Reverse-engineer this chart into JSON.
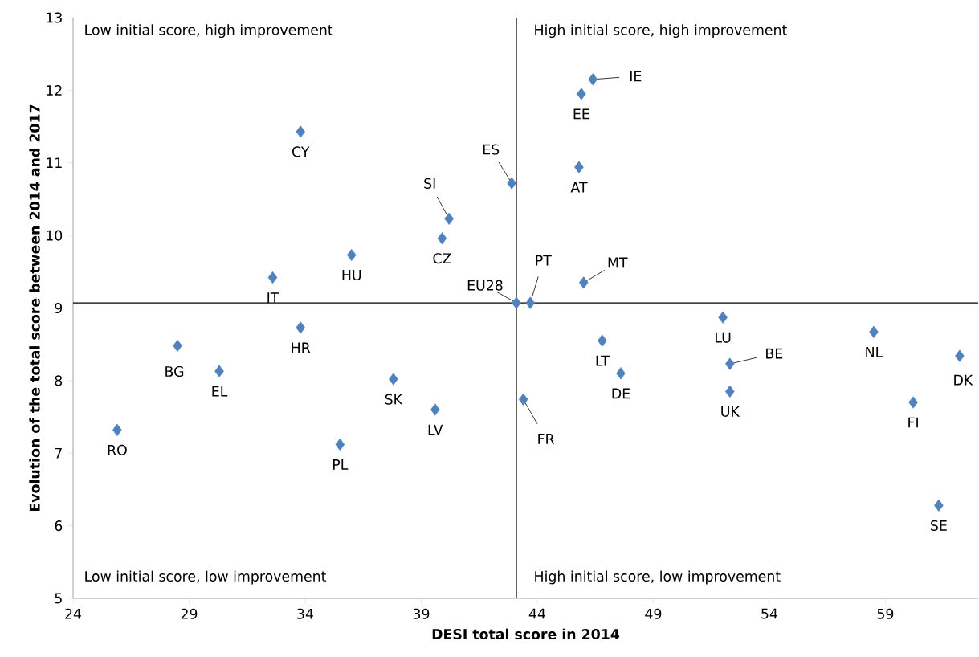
{
  "chart_data": {
    "type": "scatter",
    "xlabel": "DESI total score in 2014",
    "ylabel": "Evolution of the total score between 2014 and 2017",
    "x": [
      25.9,
      28.5,
      30.3,
      32.6,
      33.8,
      33.8,
      36.0,
      35.5,
      37.8,
      39.6,
      39.9,
      40.2,
      42.9,
      43.1,
      43.7,
      43.4,
      46.0,
      45.9,
      46.4,
      45.8,
      46.8,
      47.6,
      52.0,
      52.3,
      52.3,
      58.5,
      60.2,
      62.2,
      61.3
    ],
    "series": [
      {
        "color": "#4f81bd",
        "values": [
          7.32,
          8.48,
          8.13,
          9.42,
          11.43,
          8.73,
          9.73,
          7.12,
          8.02,
          7.6,
          9.96,
          10.23,
          10.72,
          9.07,
          9.07,
          7.74,
          9.35,
          11.95,
          12.15,
          10.94,
          8.55,
          8.1,
          8.87,
          8.23,
          7.85,
          8.67,
          7.7,
          8.34,
          6.28
        ]
      }
    ],
    "marker": "diamond",
    "xlim": [
      24,
      63
    ],
    "xticks": [
      24,
      29,
      34,
      39,
      44,
      49,
      54,
      59
    ],
    "ylim": [
      5,
      13
    ],
    "yticks": [
      5,
      6,
      7,
      8,
      9,
      10,
      11,
      12,
      13
    ],
    "grid": false,
    "ref_lines": [
      {
        "axis": "x",
        "value": 43.1,
        "color": "#000000"
      },
      {
        "axis": "y",
        "value": 9.07,
        "color": "#000000"
      }
    ],
    "annotations": [
      "Low initial score, high improvement",
      "High initial score, high improvement",
      "Low initial score, low improvement",
      "High initial score, low improvement",
      {
        "text": "RO",
        "x": 25.9,
        "y": 7.32
      },
      {
        "text": "BG",
        "x": 28.5,
        "y": 8.48
      },
      {
        "text": "EL",
        "x": 30.3,
        "y": 8.13
      },
      {
        "text": "IT",
        "x": 32.6,
        "y": 9.42
      },
      {
        "text": "CY",
        "x": 33.8,
        "y": 11.43
      },
      {
        "text": "HR",
        "x": 33.8,
        "y": 8.73
      },
      {
        "text": "HU",
        "x": 36.0,
        "y": 9.73
      },
      {
        "text": "PL",
        "x": 35.5,
        "y": 7.12
      },
      {
        "text": "SK",
        "x": 37.8,
        "y": 8.02
      },
      {
        "text": "LV",
        "x": 39.6,
        "y": 7.6
      },
      {
        "text": "CZ",
        "x": 39.9,
        "y": 9.96
      },
      {
        "text": "SI",
        "x": 40.2,
        "y": 10.23
      },
      {
        "text": "ES",
        "x": 42.9,
        "y": 10.72
      },
      {
        "text": "EU28",
        "x": 43.1,
        "y": 9.07
      },
      {
        "text": "PT",
        "x": 43.7,
        "y": 9.07
      },
      {
        "text": "FR",
        "x": 43.4,
        "y": 7.74
      },
      {
        "text": "MT",
        "x": 46.0,
        "y": 9.35
      },
      {
        "text": "EE",
        "x": 45.9,
        "y": 11.95
      },
      {
        "text": "IE",
        "x": 46.4,
        "y": 12.15
      },
      {
        "text": "AT",
        "x": 45.8,
        "y": 10.94
      },
      {
        "text": "LT",
        "x": 46.8,
        "y": 8.55
      },
      {
        "text": "DE",
        "x": 47.6,
        "y": 8.1
      },
      {
        "text": "LU",
        "x": 52.0,
        "y": 8.87
      },
      {
        "text": "BE",
        "x": 52.3,
        "y": 8.23
      },
      {
        "text": "UK",
        "x": 52.3,
        "y": 7.85
      },
      {
        "text": "NL",
        "x": 58.5,
        "y": 8.67
      },
      {
        "text": "FI",
        "x": 60.2,
        "y": 7.7
      },
      {
        "text": "DK",
        "x": 62.2,
        "y": 8.34
      },
      {
        "text": "SE",
        "x": 61.3,
        "y": 6.28
      }
    ]
  }
}
